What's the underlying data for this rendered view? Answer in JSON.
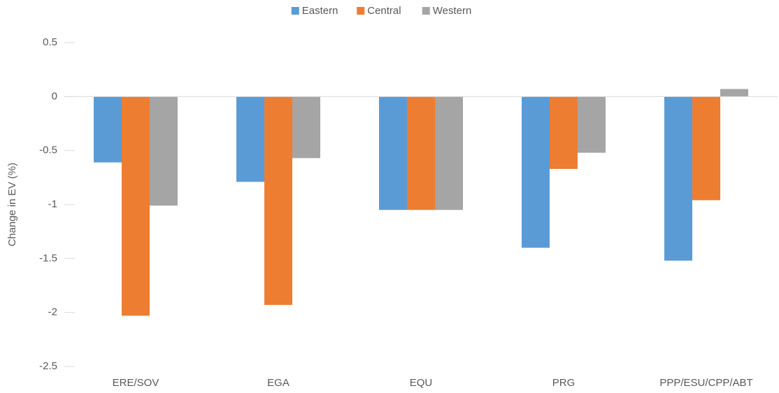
{
  "chart_data": {
    "type": "bar",
    "y_label": "Change in EV (%)",
    "categories": [
      "ERE/SOV",
      "EGA",
      "EQU",
      "PRG",
      "PPP/ESU/CPP/ABT"
    ],
    "series": [
      {
        "name": "Eastern",
        "color": "#5b9bd5",
        "values": [
          -0.61,
          -0.79,
          -1.05,
          -1.4,
          -1.52
        ]
      },
      {
        "name": "Central",
        "color": "#ed7d31",
        "values": [
          -2.03,
          -1.93,
          -1.05,
          -0.67,
          -0.96
        ]
      },
      {
        "name": "Western",
        "color": "#a5a5a5",
        "values": [
          -1.01,
          -0.57,
          -1.05,
          -0.52,
          0.07
        ]
      }
    ],
    "ylim": [
      -2.5,
      0.5
    ],
    "yticks": [
      -2.5,
      -2,
      -1.5,
      -1,
      -0.5,
      0,
      0.5
    ],
    "grid": false,
    "legend": "top"
  }
}
